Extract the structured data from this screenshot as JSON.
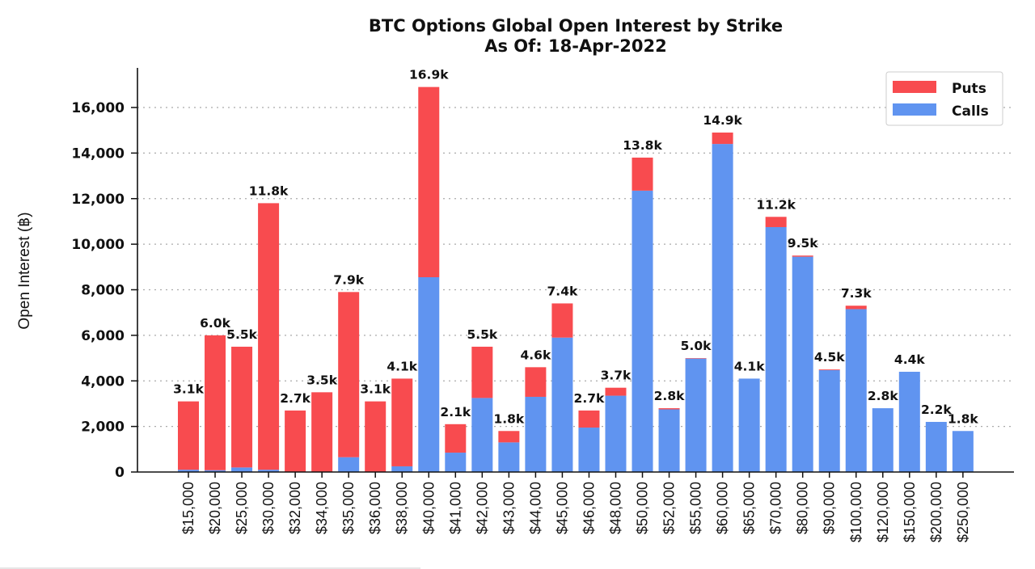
{
  "chart_data": {
    "type": "bar",
    "stacked": true,
    "title": "BTC Options Global Open Interest by Strike",
    "subtitle": "As Of: 18-Apr-2022",
    "xlabel": "",
    "ylabel": "Open Interest (฿)",
    "ylim": [
      0,
      17900
    ],
    "yticks": [
      0,
      2000,
      4000,
      6000,
      8000,
      10000,
      12000,
      14000,
      16000
    ],
    "ytick_labels": [
      "0",
      "2,000",
      "4,000",
      "6,000",
      "8,000",
      "10,000",
      "12,000",
      "14,000",
      "16,000"
    ],
    "grid": "horizontal-dotted",
    "legend_position": "top-right",
    "categories": [
      "$15,000",
      "$20,000",
      "$25,000",
      "$30,000",
      "$32,000",
      "$34,000",
      "$35,000",
      "$36,000",
      "$38,000",
      "$40,000",
      "$41,000",
      "$42,000",
      "$43,000",
      "$44,000",
      "$45,000",
      "$46,000",
      "$48,000",
      "$50,000",
      "$52,000",
      "$55,000",
      "$60,000",
      "$65,000",
      "$70,000",
      "$80,000",
      "$90,000",
      "$100,000",
      "$120,000",
      "$150,000",
      "$200,000",
      "$250,000"
    ],
    "series": [
      {
        "name": "Calls",
        "color": "#6094f0",
        "values": [
          100,
          80,
          200,
          100,
          0,
          0,
          650,
          0,
          250,
          8550,
          850,
          3250,
          1300,
          3300,
          5900,
          1950,
          3350,
          12350,
          2750,
          4980,
          14400,
          4100,
          10750,
          9450,
          4470,
          7150,
          2800,
          4400,
          2200,
          1800
        ]
      },
      {
        "name": "Puts",
        "color": "#f84b4f",
        "values": [
          3000,
          5920,
          5300,
          11700,
          2700,
          3500,
          7250,
          3100,
          3850,
          8350,
          1250,
          2250,
          500,
          1300,
          1500,
          750,
          350,
          1450,
          50,
          20,
          500,
          0,
          450,
          50,
          30,
          150,
          0,
          0,
          0,
          0
        ]
      }
    ],
    "totals": [
      3100,
      6000,
      5500,
      11800,
      2700,
      3500,
      7900,
      3100,
      4100,
      16900,
      2100,
      5500,
      1800,
      4600,
      7400,
      2700,
      3700,
      13800,
      2800,
      5000,
      14900,
      4100,
      11200,
      9500,
      4500,
      7300,
      2800,
      4400,
      2200,
      1800
    ],
    "data_labels": [
      "3.1k",
      "6.0k",
      "5.5k",
      "11.8k",
      "2.7k",
      "3.5k",
      "7.9k",
      "3.1k",
      "4.1k",
      "16.9k",
      "2.1k",
      "5.5k",
      "1.8k",
      "4.6k",
      "7.4k",
      "2.7k",
      "3.7k",
      "13.8k",
      "2.8k",
      "5.0k",
      "14.9k",
      "4.1k",
      "11.2k",
      "9.5k",
      "4.5k",
      "7.3k",
      "2.8k",
      "4.4k",
      "2.2k",
      "1.8k"
    ],
    "legend": [
      {
        "label": "Puts",
        "color": "#f84b4f"
      },
      {
        "label": "Calls",
        "color": "#6094f0"
      }
    ]
  }
}
